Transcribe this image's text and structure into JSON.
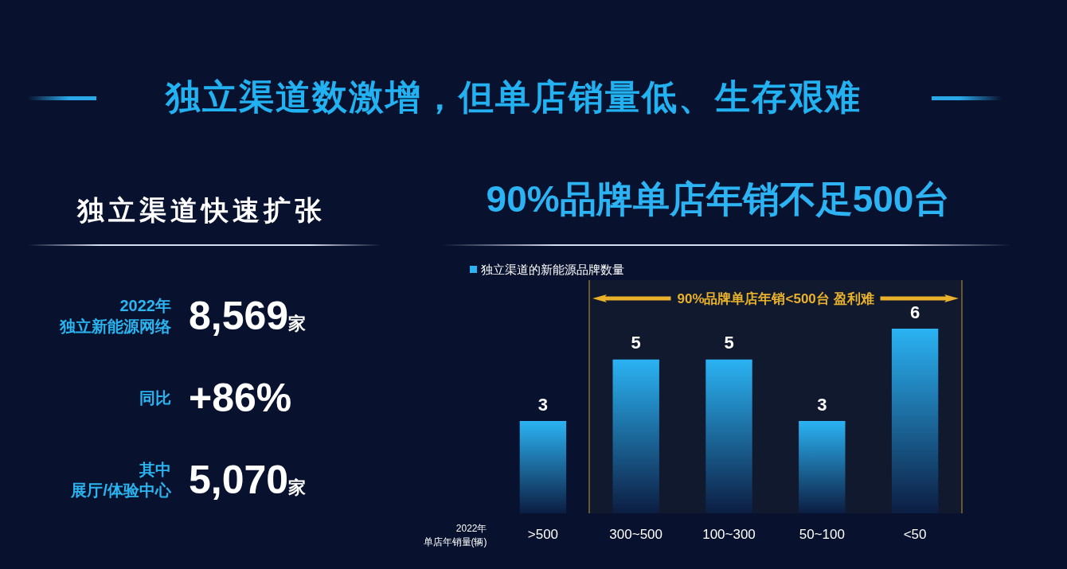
{
  "chart_data": [
    {
      "type": "other",
      "title": "独立渠道数激增，但单店销量低、生存艰难",
      "subtitle": "独立渠道快速扩张",
      "annotations": [
        "2022年独立新能源网络",
        "8,569家",
        "同比",
        "+86%",
        "其中展厅/体验中心",
        "5,070家"
      ]
    },
    {
      "type": "bar",
      "title": "90%品牌单店年销不足500台",
      "xlabel": "2022年单店年销量(辆)",
      "categories": [
        ">500",
        "300~500",
        "100~300",
        "50~100",
        "<50"
      ],
      "series": [
        {
          "name": "独立渠道的新能源品牌数量",
          "color": "#2bb3f3",
          "values": [
            3,
            5,
            5,
            3,
            6
          ]
        }
      ],
      "data_labels": true,
      "legend": "top left",
      "bands": [
        {
          "axis": "x",
          "from": "300~500",
          "to": "<50",
          "label": "90%品牌单店年销<500台 盈利难",
          "color": "#eab22a"
        }
      ]
    }
  ]
}
